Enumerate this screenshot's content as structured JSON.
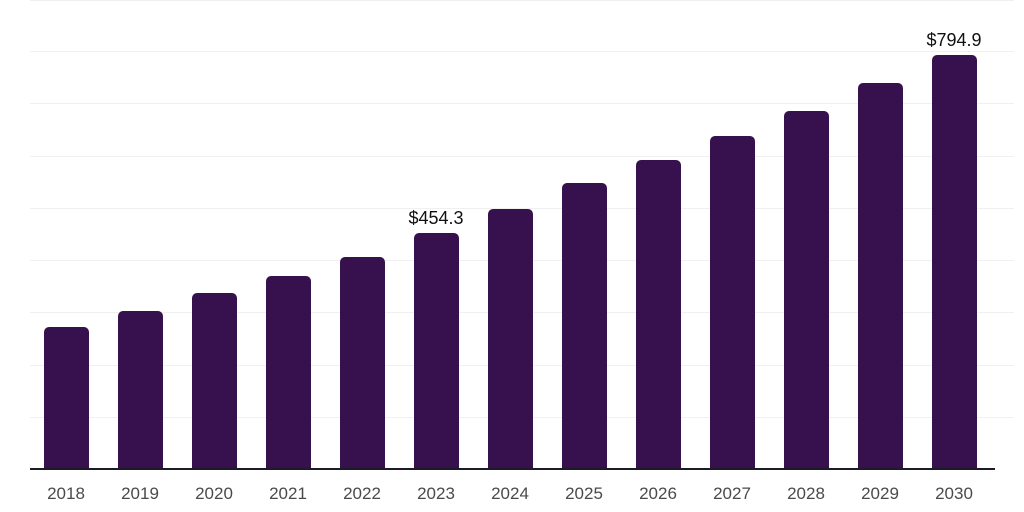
{
  "chart_data": {
    "type": "bar",
    "title": "",
    "xlabel": "",
    "ylabel": "",
    "categories": [
      "2018",
      "2019",
      "2020",
      "2021",
      "2022",
      "2023",
      "2024",
      "2025",
      "2026",
      "2027",
      "2028",
      "2029",
      "2030"
    ],
    "values": [
      273.8,
      304.5,
      338.9,
      371.5,
      408.4,
      454.3,
      499.2,
      549.0,
      593.6,
      639.6,
      688.0,
      740.4,
      794.9
    ],
    "labeled_points": [
      {
        "category": "2023",
        "label": "$454.3"
      },
      {
        "category": "2030",
        "label": "$794.9"
      }
    ],
    "currency_prefix": "$",
    "ylim": [
      0,
      900
    ],
    "gridline_step": 100,
    "grid": true,
    "legend": false,
    "colors": {
      "bar": "#36114E",
      "gridline": "#F0F0F1",
      "axis_line": "#1C1C28",
      "tick_label": "#4A4A4A",
      "value_label": "#111111",
      "background": "#FFFFFF"
    }
  }
}
